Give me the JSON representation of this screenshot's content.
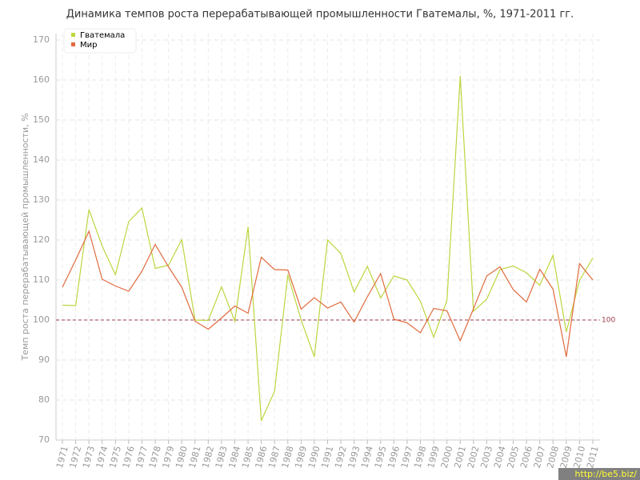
{
  "chart_data": {
    "type": "line",
    "title": "Динамика темпов роста перерабатывающей промышленности Гватемалы, %, 1971-2011 гг.",
    "y_label": "Темп роста перерабатывающей промышленности, %",
    "categories": [
      "1971",
      "1972",
      "1973",
      "1974",
      "1975",
      "1976",
      "1977",
      "1978",
      "1979",
      "1980",
      "1981",
      "1982",
      "1983",
      "1984",
      "1985",
      "1986",
      "1987",
      "1988",
      "1989",
      "1990",
      "1991",
      "1992",
      "1993",
      "1994",
      "1995",
      "1996",
      "1997",
      "1998",
      "1999",
      "2000",
      "2001",
      "2002",
      "2003",
      "2004",
      "2005",
      "2006",
      "2007",
      "2008",
      "2009",
      "2010",
      "2011"
    ],
    "series": [
      {
        "name": "Гватемала",
        "color": "#bcd63f",
        "values": [
          103.7,
          103.6,
          127.6,
          118.5,
          111.3,
          124.6,
          128,
          112.9,
          113.7,
          120.1,
          100,
          99.9,
          108.3,
          99.7,
          123.3,
          74.8,
          82.2,
          111.3,
          100,
          90.8,
          120,
          116.6,
          107,
          113.4,
          105.5,
          111,
          110,
          104.7,
          95.7,
          104.9,
          161,
          102.2,
          105.2,
          112.6,
          113.5,
          111.8,
          108.7,
          116.2,
          97,
          109.9,
          115.5
        ]
      },
      {
        "name": "Мир",
        "color": "#e06b3e",
        "values": [
          108.2,
          115,
          122.2,
          110.2,
          108.5,
          107.2,
          112.2,
          118.9,
          113.3,
          108.2,
          99.7,
          97.7,
          100.5,
          103.5,
          101.7,
          115.7,
          112.6,
          112.5,
          102.7,
          105.6,
          103,
          104.5,
          99.5,
          105.8,
          111.6,
          100.2,
          99.3,
          96.8,
          102.9,
          102.3,
          94.8,
          102.8,
          111,
          113.3,
          107.6,
          104.5,
          112.7,
          107.7,
          90.8,
          114.1,
          110
        ]
      }
    ],
    "ylim": [
      70,
      170
    ],
    "yticks": [
      70,
      80,
      90,
      100,
      110,
      120,
      130,
      140,
      150,
      160,
      170
    ],
    "reference_line": 100,
    "reference_color": "#9b3a4a",
    "grid": true,
    "legend": "top-left",
    "watermark": "http://be5.biz/"
  }
}
